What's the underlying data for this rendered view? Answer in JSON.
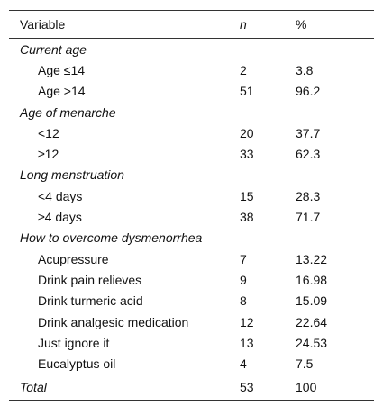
{
  "table": {
    "header": [
      "Variable",
      "n",
      "%"
    ],
    "groups": [
      {
        "title": "Current age",
        "rows": [
          [
            "Age ≤14",
            "2",
            "3.8"
          ],
          [
            "Age >14",
            "51",
            "96.2"
          ]
        ]
      },
      {
        "title": "Age of menarche",
        "rows": [
          [
            "<12",
            "20",
            "37.7"
          ],
          [
            "≥12",
            "33",
            "62.3"
          ]
        ]
      },
      {
        "title": "Long menstruation",
        "rows": [
          [
            "<4 days",
            "15",
            "28.3"
          ],
          [
            "≥4 days",
            "38",
            "71.7"
          ]
        ]
      },
      {
        "title": "How to overcome dysmenorrhea",
        "rows": [
          [
            "Acupressure",
            "7",
            "13.22"
          ],
          [
            "Drink pain relieves",
            "9",
            "16.98"
          ],
          [
            "Drink turmeric acid",
            "8",
            "15.09"
          ],
          [
            "Drink analgesic medication",
            "12",
            "22.64"
          ],
          [
            "Just ignore it",
            "13",
            "24.53"
          ],
          [
            "Eucalyptus oil",
            "4",
            "7.5"
          ]
        ]
      }
    ],
    "total": [
      "Total",
      "53",
      "100"
    ]
  }
}
